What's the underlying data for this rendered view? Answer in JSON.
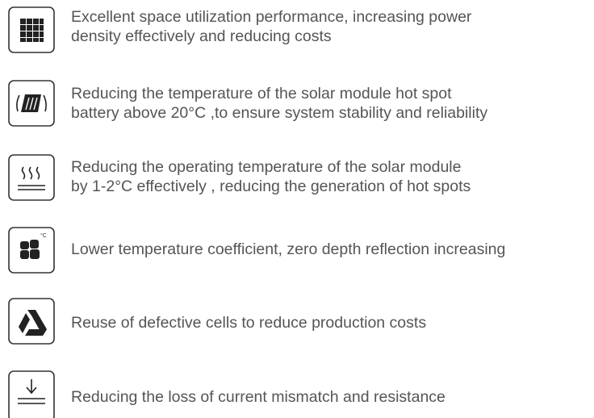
{
  "items": [
    {
      "lines": [
        "Excellent space utilization performance, increasing power",
        "density effectively and reducing costs"
      ]
    },
    {
      "lines": [
        "Reducing the temperature of the solar module hot spot",
        "battery above 20°C ,to ensure system stability and reliability"
      ]
    },
    {
      "lines": [
        "Reducing the operating temperature of the solar module",
        "by 1-2°C effectively , reducing the generation of hot spots"
      ]
    },
    {
      "lines": [
        "Lower temperature coefficient, zero depth reflection increasing"
      ],
      "icon_text": "°C"
    },
    {
      "lines": [
        "Reuse of defective cells to reduce production costs"
      ]
    },
    {
      "lines": [
        "Reducing the loss of current mismatch  and resistance"
      ]
    }
  ]
}
